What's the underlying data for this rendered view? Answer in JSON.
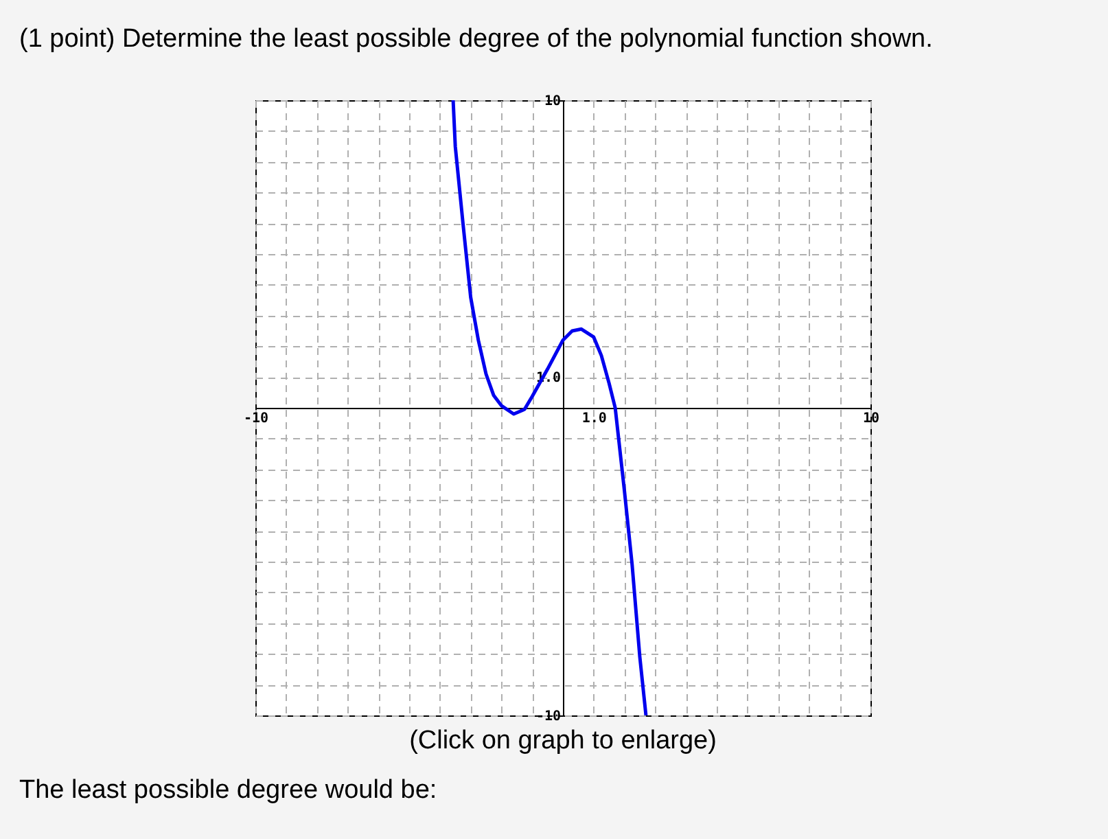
{
  "chart_data": {
    "type": "line",
    "title": "(1 point) Determine the least possible degree of the polynomial function shown.",
    "annotations": [
      "(Click on graph to enlarge)",
      "The least possible degree would be:"
    ],
    "x": [
      -3.57,
      -3.5,
      -3.25,
      -3,
      -2.75,
      -2.5,
      -2.25,
      -2,
      -1.6,
      -1.25,
      -1,
      -0.5,
      0,
      0.3,
      0.6,
      1,
      1.25,
      1.5,
      1.7,
      2,
      2.25,
      2.5,
      2.7
    ],
    "series": [
      {
        "color": "#0000ee",
        "values": [
          10,
          8.5,
          6,
          3.6,
          2.2,
          1.1,
          0.4,
          0.07,
          -0.2,
          -0.05,
          0.37,
          1.26,
          2.2,
          2.5,
          2.56,
          2.3,
          1.7,
          0.8,
          0,
          -2.7,
          -5.1,
          -8.1,
          -10
        ]
      }
    ],
    "xlim": [
      -10,
      10
    ],
    "ylim": [
      -10,
      10
    ],
    "xticks": [
      -10,
      {
        "value": -9,
        "label": null
      },
      {
        "value": -8,
        "label": null
      },
      {
        "value": -7,
        "label": null
      },
      {
        "value": -6,
        "label": null
      },
      {
        "value": -5,
        "label": null
      },
      {
        "value": -4,
        "label": null
      },
      {
        "value": -3,
        "label": null
      },
      {
        "value": -2,
        "label": null
      },
      {
        "value": -1,
        "label": null
      },
      {
        "value": 0,
        "label": null
      },
      {
        "value": 1,
        "label": "1.0"
      },
      {
        "value": 2,
        "label": null
      },
      {
        "value": 3,
        "label": null
      },
      {
        "value": 4,
        "label": null
      },
      {
        "value": 5,
        "label": null
      },
      {
        "value": 6,
        "label": null
      },
      {
        "value": 7,
        "label": null
      },
      {
        "value": 8,
        "label": null
      },
      {
        "value": 9,
        "label": null
      },
      10
    ],
    "yticks": [
      -10,
      {
        "value": -9,
        "label": null
      },
      {
        "value": -8,
        "label": null
      },
      {
        "value": -7,
        "label": null
      },
      {
        "value": -6,
        "label": null
      },
      {
        "value": -5,
        "label": null
      },
      {
        "value": -4,
        "label": null
      },
      {
        "value": -3,
        "label": null
      },
      {
        "value": -2,
        "label": null
      },
      {
        "value": -1,
        "label": null
      },
      {
        "value": 0,
        "label": null
      },
      {
        "value": 1,
        "label": "1.0"
      },
      {
        "value": 2,
        "label": null
      },
      {
        "value": 3,
        "label": null
      },
      {
        "value": 4,
        "label": null
      },
      {
        "value": 5,
        "label": null
      },
      {
        "value": 6,
        "label": null
      },
      {
        "value": 7,
        "label": null
      },
      {
        "value": 8,
        "label": null
      },
      {
        "value": 9,
        "label": null
      },
      10
    ],
    "grid": true,
    "line_style": "solid",
    "marker": "none"
  }
}
